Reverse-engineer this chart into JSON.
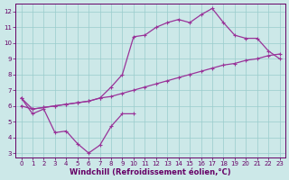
{
  "xlabel": "Windchill (Refroidissement éolien,°C)",
  "xlim": [
    -0.5,
    23.5
  ],
  "ylim": [
    2.7,
    12.5
  ],
  "yticks": [
    3,
    4,
    5,
    6,
    7,
    8,
    9,
    10,
    11,
    12
  ],
  "xticks": [
    0,
    1,
    2,
    3,
    4,
    5,
    6,
    7,
    8,
    9,
    10,
    11,
    12,
    13,
    14,
    15,
    16,
    17,
    18,
    19,
    20,
    21,
    22,
    23
  ],
  "bg_color": "#cce8e8",
  "grid_color": "#99cccc",
  "line_color": "#993399",
  "line1_x": [
    0,
    1,
    2,
    3,
    4,
    5,
    6,
    7,
    8,
    9,
    10
  ],
  "line1_y": [
    6.5,
    5.5,
    5.8,
    4.3,
    4.4,
    3.6,
    3.0,
    3.5,
    4.7,
    5.5,
    5.5
  ],
  "line2_x": [
    0,
    1,
    2,
    3,
    4,
    5,
    6,
    7,
    8,
    9,
    10,
    11,
    12,
    13,
    14,
    15,
    16,
    17,
    18,
    19,
    20,
    21,
    22,
    23
  ],
  "line2_y": [
    6.0,
    5.8,
    5.9,
    6.0,
    6.1,
    6.2,
    6.3,
    6.5,
    6.6,
    6.8,
    7.0,
    7.2,
    7.4,
    7.6,
    7.8,
    8.0,
    8.2,
    8.4,
    8.6,
    8.7,
    8.9,
    9.0,
    9.2,
    9.3
  ],
  "line3_x": [
    0,
    1,
    2,
    3,
    4,
    5,
    6,
    7,
    8,
    9,
    10,
    11,
    12,
    13,
    14,
    15,
    16,
    17,
    18,
    19,
    20,
    21,
    22,
    23
  ],
  "line3_y": [
    6.5,
    5.8,
    5.9,
    6.0,
    6.1,
    6.2,
    6.3,
    6.5,
    7.2,
    8.0,
    10.4,
    10.5,
    11.0,
    11.3,
    11.5,
    11.3,
    11.8,
    12.2,
    11.3,
    10.5,
    10.3,
    10.3,
    9.5,
    9.0
  ],
  "marker": "+",
  "markersize": 3.5,
  "linewidth": 0.9,
  "tick_fontsize": 5.0,
  "xlabel_fontsize": 6.0
}
